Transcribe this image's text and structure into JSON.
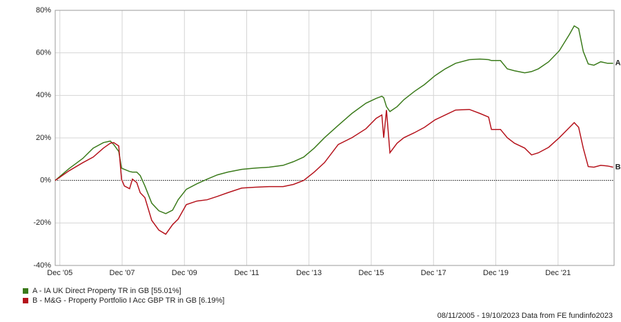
{
  "chart_data": {
    "type": "line",
    "x": [
      2005.85,
      2006.29,
      2006.74,
      2007.07,
      2007.4,
      2007.62,
      2007.73,
      2007.89,
      2007.98,
      2008.07,
      2008.24,
      2008.33,
      2008.47,
      2008.58,
      2008.73,
      2008.95,
      2009.18,
      2009.4,
      2009.62,
      2009.8,
      2010.06,
      2010.4,
      2010.73,
      2011.06,
      2011.39,
      2011.84,
      2012.28,
      2012.72,
      2013.17,
      2013.5,
      2013.83,
      2014.17,
      2014.5,
      2014.94,
      2015.38,
      2015.83,
      2016.16,
      2016.34,
      2016.4,
      2016.49,
      2016.6,
      2016.83,
      2017.05,
      2017.38,
      2017.71,
      2018.05,
      2018.38,
      2018.71,
      2019.15,
      2019.49,
      2019.77,
      2019.86,
      2020.15,
      2020.37,
      2020.6,
      2020.93,
      2021.15,
      2021.37,
      2021.7,
      2022.04,
      2022.37,
      2022.52,
      2022.66,
      2022.81,
      2022.97,
      2023.15,
      2023.37,
      2023.59,
      2023.77
    ],
    "series": [
      {
        "name": "A - IA UK Direct Property TR in GB [55.01%]",
        "label": "A",
        "color": "#3a7a1a",
        "values": [
          0,
          5.5,
          10.4,
          15.2,
          17.8,
          18.5,
          16.9,
          13.6,
          5.8,
          5.2,
          4.2,
          3.9,
          3.9,
          2.3,
          -2.6,
          -10.7,
          -14.3,
          -15.6,
          -14.0,
          -9.1,
          -4.2,
          -1.6,
          0.6,
          2.6,
          3.9,
          5.2,
          5.8,
          6.2,
          7.1,
          8.8,
          11.0,
          15.2,
          20.1,
          25.9,
          31.5,
          36.3,
          38.6,
          39.6,
          38.9,
          34.7,
          32.4,
          34.7,
          38.0,
          41.8,
          45.1,
          49.3,
          52.5,
          55.1,
          56.8,
          57.1,
          56.8,
          56.4,
          56.4,
          52.5,
          51.6,
          50.6,
          51.2,
          52.5,
          55.8,
          61.0,
          68.8,
          72.7,
          71.4,
          60.7,
          54.8,
          54.2,
          55.8,
          55.1,
          55.1
        ]
      },
      {
        "name": "B - M&G - Property Portfolio I Acc GBP TR in GB [6.19%]",
        "label": "B",
        "color": "#b5121b",
        "values": [
          0,
          4.5,
          8.4,
          11.0,
          15.2,
          17.5,
          17.8,
          16.2,
          0.6,
          -2.6,
          -3.9,
          0.6,
          -1.0,
          -5.8,
          -8.1,
          -18.8,
          -23.4,
          -25.3,
          -20.8,
          -18.2,
          -11.4,
          -9.7,
          -9.1,
          -7.5,
          -5.8,
          -3.6,
          -3.2,
          -2.9,
          -2.9,
          -1.9,
          0,
          3.9,
          8.4,
          16.9,
          20.1,
          24.3,
          29.2,
          30.8,
          20.1,
          33.1,
          13.0,
          17.5,
          20.1,
          22.4,
          25.0,
          28.5,
          30.8,
          33.1,
          33.4,
          31.5,
          29.8,
          24.0,
          24.0,
          20.1,
          17.5,
          15.2,
          12.0,
          13.0,
          15.6,
          20.1,
          25.0,
          27.2,
          25.0,
          15.2,
          6.5,
          6.2,
          7.1,
          6.8,
          6.2
        ]
      }
    ],
    "xlim": [
      2005.85,
      2023.8
    ],
    "xticks": [
      {
        "value": 2006,
        "label": "Dec '05"
      },
      {
        "value": 2008,
        "label": "Dec '07"
      },
      {
        "value": 2010,
        "label": "Dec '09"
      },
      {
        "value": 2012,
        "label": "Dec '11"
      },
      {
        "value": 2014,
        "label": "Dec '13"
      },
      {
        "value": 2016,
        "label": "Dec '15"
      },
      {
        "value": 2018,
        "label": "Dec '17"
      },
      {
        "value": 2020,
        "label": "Dec '19"
      },
      {
        "value": 2022,
        "label": "Dec '21"
      }
    ],
    "ylim": [
      -40,
      80
    ],
    "yticks": [
      {
        "value": -40,
        "label": "-40%"
      },
      {
        "value": -20,
        "label": "-20%"
      },
      {
        "value": 0,
        "label": "0%"
      },
      {
        "value": 20,
        "label": "20%"
      },
      {
        "value": 40,
        "label": "40%"
      },
      {
        "value": 60,
        "label": "60%"
      },
      {
        "value": 80,
        "label": "80%"
      }
    ],
    "grid": true,
    "footnote": "08/11/2005 - 19/10/2023 Data from FE fundinfo2023"
  }
}
